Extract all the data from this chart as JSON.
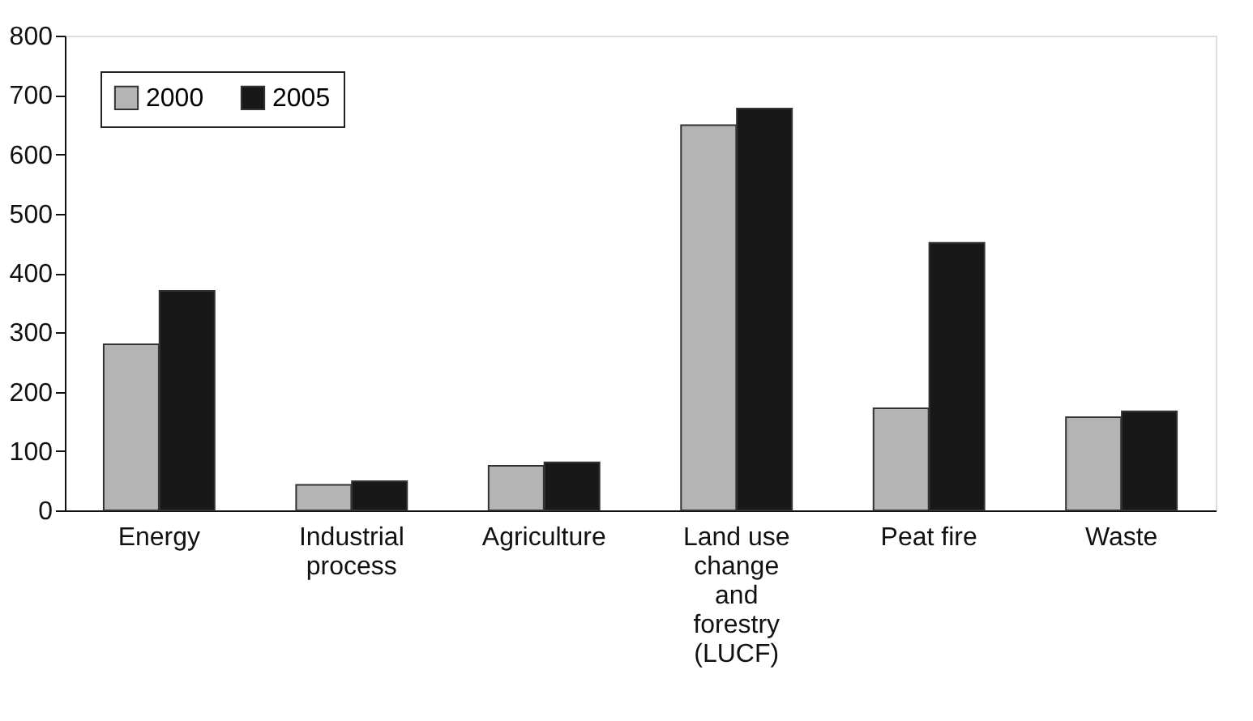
{
  "chart_data": {
    "type": "bar",
    "categories": [
      "Energy",
      "Industrial process",
      "Agriculture",
      "Land use change and forestry (LUCF)",
      "Peat fire",
      "Waste"
    ],
    "series": [
      {
        "name": "2000",
        "color": "#b3b4b3",
        "values": [
          280,
          43,
          75,
          649,
          172,
          157
        ]
      },
      {
        "name": "2005",
        "color": "#181818",
        "values": [
          370,
          49,
          81,
          677,
          451,
          167
        ]
      }
    ],
    "ylim": [
      0,
      800
    ],
    "yticks": [
      0,
      100,
      200,
      300,
      400,
      500,
      600,
      700,
      800
    ],
    "grid": false,
    "legend": "top left"
  }
}
